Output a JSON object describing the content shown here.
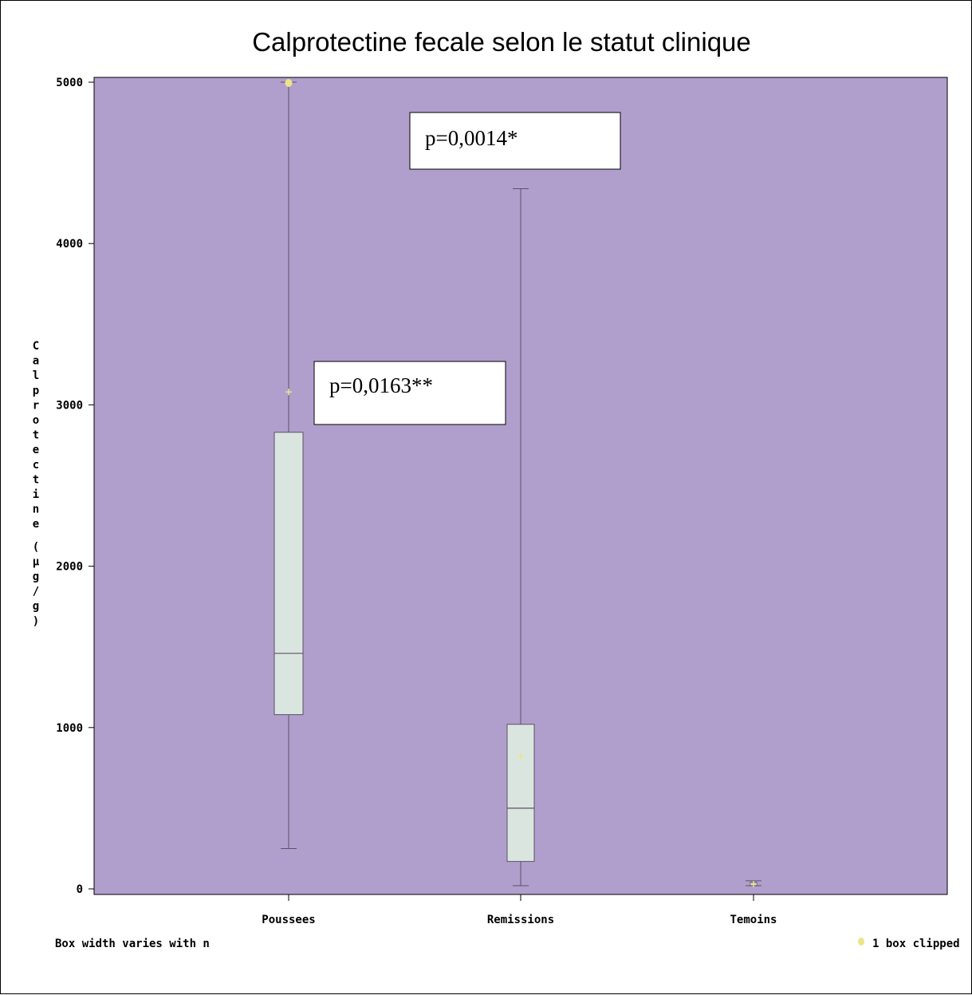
{
  "chart_data": {
    "type": "box",
    "title": "Calprotectine fecale selon le statut clinique",
    "ylabel": "Calprotectine (µg/g)",
    "xlabel": "",
    "ylim": [
      0,
      5000
    ],
    "yticks": [
      0,
      1000,
      2000,
      3000,
      4000,
      5000
    ],
    "categories": [
      "Poussees",
      "Remissions",
      "Temoins"
    ],
    "boxes": [
      {
        "category": "Poussees",
        "min": 250,
        "q1": 1080,
        "median": 1460,
        "q3": 2830,
        "max": 5000,
        "mean": 3080,
        "clipped": true
      },
      {
        "category": "Remissions",
        "min": 20,
        "q1": 170,
        "median": 500,
        "q3": 1020,
        "max": 4340,
        "mean": 820,
        "clipped": false
      },
      {
        "category": "Temoins",
        "min": 20,
        "q1": 20,
        "median": 30,
        "q3": 40,
        "max": 50,
        "mean": 30,
        "clipped": false
      }
    ],
    "annotations": [
      "p=0,0014*",
      "p=0,0163**"
    ],
    "footnote_left": "Box width varies with n",
    "footnote_right": "1 box clipped",
    "colors": {
      "plot_background": "#b09fcc",
      "box_fill": "#dbe5df",
      "box_stroke": "#5a5166",
      "mean_marker": "#ece48a",
      "clip_marker": "#ece48a"
    },
    "grid": false
  }
}
